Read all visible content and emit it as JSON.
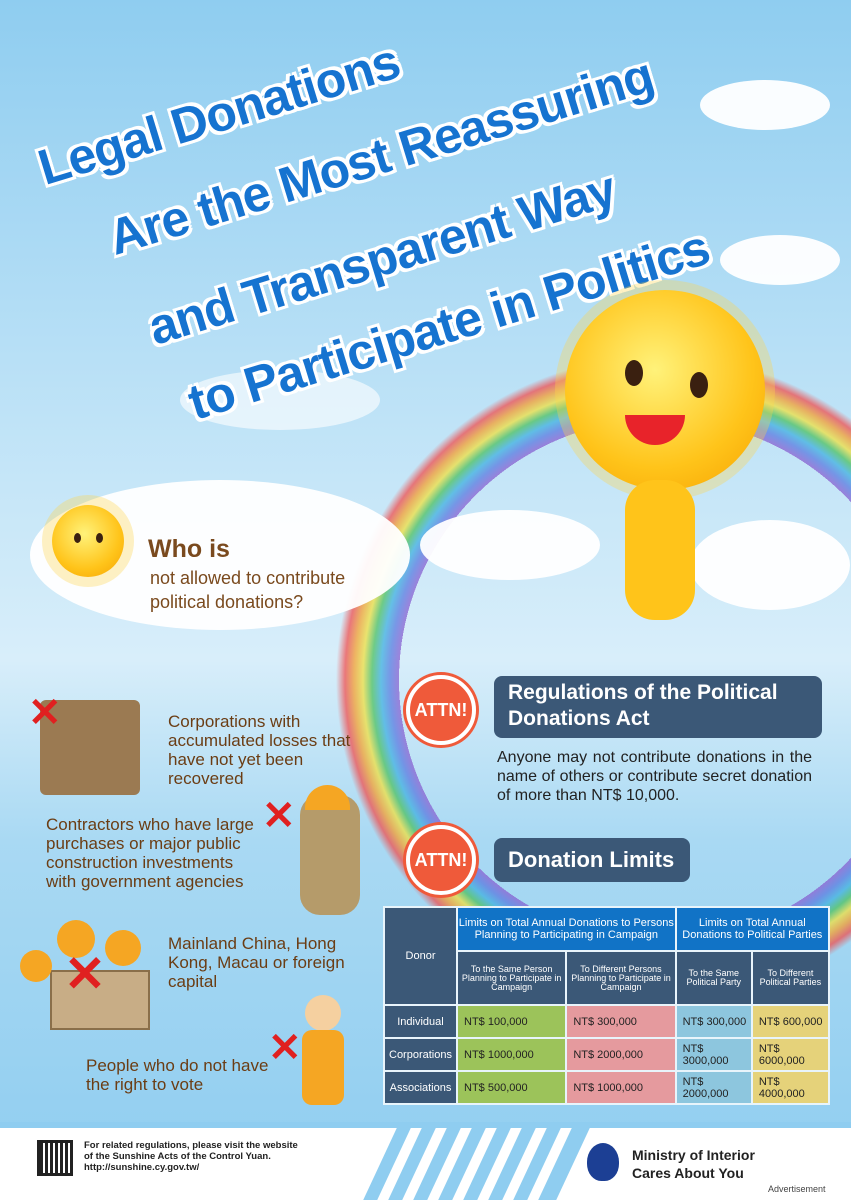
{
  "title": {
    "lines": [
      "Legal Donations",
      "Are the Most Reassuring",
      "and Transparent Way",
      "to Participate in Politics"
    ]
  },
  "who": {
    "heading": "Who is",
    "sub1": "not allowed to contribute",
    "sub2": "political donations?"
  },
  "items": [
    {
      "text": "Corporations with accumulated losses that have not yet been recovered"
    },
    {
      "text": "Contractors who have large purchases or major public construction investments with government agencies"
    },
    {
      "text": "Mainland China, Hong Kong, Macau or foreign capital"
    },
    {
      "text": "People who do not have the right to vote"
    }
  ],
  "attn1": {
    "badge": "ATTN!",
    "title": "Regulations of the Political Donations Act",
    "body": "Anyone may not contribute donations in the name of others or contribute secret donation of more than NT$ 10,000."
  },
  "attn2": {
    "badge": "ATTN!",
    "title": "Donation Limits"
  },
  "table": {
    "donor_header": "Donor",
    "group1": "Limits on Total Annual Donations to Persons Planning to Participating in Campaign",
    "group2": "Limits on Total Annual Donations to Political Parties",
    "cols": [
      "To the Same Person Planning to Participate in Campaign",
      "To Different Persons Planning to Participate in Campaign",
      "To the Same Political Party",
      "To Different Political Parties"
    ],
    "rows": [
      {
        "donor": "Individual",
        "values": [
          "NT$ 100,000",
          "NT$ 300,000",
          "NT$ 300,000",
          "NT$ 600,000"
        ]
      },
      {
        "donor": "Corporations",
        "values": [
          "NT$ 1000,000",
          "NT$ 2000,000",
          "NT$ 3000,000",
          "NT$ 6000,000"
        ]
      },
      {
        "donor": "Associations",
        "values": [
          "NT$ 500,000",
          "NT$ 1000,000",
          "NT$ 2000,000",
          "NT$ 4000,000"
        ]
      }
    ]
  },
  "footer": {
    "line1": "For related regulations, please visit the website",
    "line2": "of the Sunshine Acts of the Control Yuan.",
    "url": "http://sunshine.cy.gov.tw/",
    "ministry1": "Ministry of Interior",
    "ministry2": "Cares About You",
    "ad": "Advertisement"
  },
  "colors": {
    "title": "#1673d0",
    "banner": "#3b5877",
    "attn": "#ef5a3a",
    "header": "#1173c6"
  }
}
